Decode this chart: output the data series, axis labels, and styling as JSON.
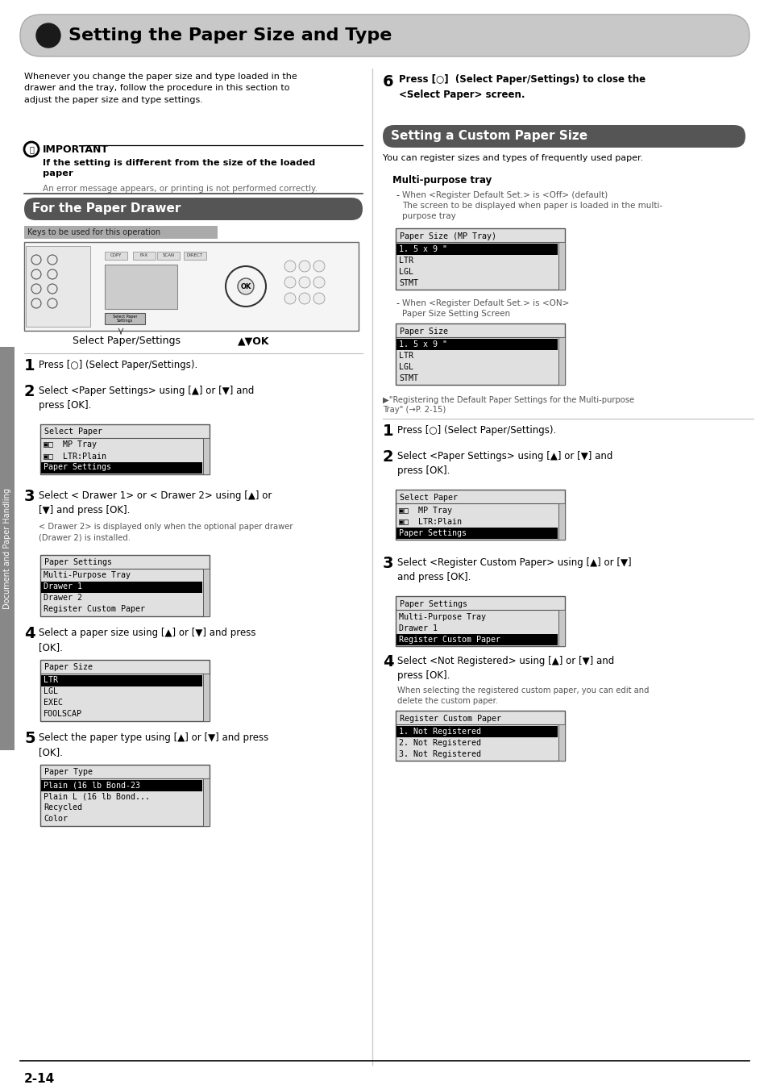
{
  "title": "Setting the Paper Size and Type",
  "page_number": "2-14",
  "sidebar_text": "Document and Paper Handling",
  "bg_color": "#ffffff",
  "intro_text": "Whenever you change the paper size and type loaded in the\ndrawer and the tray, follow the procedure in this section to\nadjust the paper size and type settings.",
  "important_title": "IMPORTANT",
  "important_bold": "If the setting is different from the size of the loaded\npaper",
  "important_body": "An error message appears, or printing is not performed correctly.",
  "section_left_title": "For the Paper Drawer",
  "keys_label": "Keys to be used for this operation",
  "caption_left": "Select Paper/Settings",
  "caption_right": "▲▼OK",
  "step1_left": "Press [○] (Select Paper/Settings).",
  "step2_left": "Select <Paper Settings> using [▲] or [▼] and\npress [OK].",
  "screen1_title": "Select Paper",
  "screen1_lines": [
    "▣□  MP Tray",
    "▣□  LTR:Plain",
    "Paper Settings"
  ],
  "screen1_highlight": 2,
  "step3_left": "Select < Drawer 1> or < Drawer 2> using [▲] or\n[▼] and press [OK].",
  "step3_note": "< Drawer 2> is displayed only when the optional paper drawer\n(Drawer 2) is installed.",
  "screen2_title": "Paper Settings",
  "screen2_lines": [
    "Multi-Purpose Tray",
    "Drawer 1",
    "Drawer 2",
    "Register Custom Paper"
  ],
  "screen2_highlight": 1,
  "step4_left": "Select a paper size using [▲] or [▼] and press\n[OK].",
  "screen3_title": "Paper Size",
  "screen3_lines": [
    "LTR",
    "LGL",
    "EXEC",
    "FOOLSCAP"
  ],
  "screen3_highlight": 0,
  "step5_left": "Select the paper type using [▲] or [▼] and press\n[OK].",
  "screen4_title": "Paper Type",
  "screen4_lines": [
    "Plain (16 lb Bond-23",
    "Plain L (16 lb Bond...",
    "Recycled",
    "Color"
  ],
  "screen4_highlight": 0,
  "step6_right": "Press [○]  (Select Paper/Settings) to close the\n<Select Paper> screen.",
  "section_right_title": "Setting a Custom Paper Size",
  "custom_intro": "You can register sizes and types of frequently used paper.",
  "multi_purpose_title": "Multi-purpose tray",
  "bullet1_line1": "When <Register Default Set.> is <Off> (default)",
  "bullet1_line2": "The screen to be displayed when paper is loaded in the multi-\npurpose tray",
  "screen5_title": "Paper Size (MP Tray)",
  "screen5_lines": [
    "1. 5 x 9 \"",
    "LTR",
    "LGL",
    "STMT"
  ],
  "screen5_highlight": 0,
  "bullet2_line1": "When <Register Default Set.> is <ON>",
  "bullet2_line2": "Paper Size Setting Screen",
  "screen6_title": "Paper Size",
  "screen6_lines": [
    "1. 5 x 9 \"",
    "LTR",
    "LGL",
    "STMT"
  ],
  "screen6_highlight": 0,
  "note_ref_line1": "▶\"Registering the Default Paper Settings for the Multi-purpose",
  "note_ref_line2": "Tray\" (→P. 2-15)",
  "step1_right": "Press [○] (Select Paper/Settings).",
  "step2_right": "Select <Paper Settings> using [▲] or [▼] and\npress [OK].",
  "screen7_title": "Select Paper",
  "screen7_lines": [
    "▣□  MP Tray",
    "▣□  LTR:Plain",
    "Paper Settings"
  ],
  "screen7_highlight": 2,
  "step3_right": "Select <Register Custom Paper> using [▲] or [▼]\nand press [OK].",
  "screen8_title": "Paper Settings",
  "screen8_lines": [
    "Multi-Purpose Tray",
    "Drawer 1",
    "Register Custom Paper"
  ],
  "screen8_highlight": 2,
  "step4_right": "Select <Not Registered> using [▲] or [▼] and\npress [OK].",
  "step4_right_note": "When selecting the registered custom paper, you can edit and\ndelete the custom paper.",
  "screen9_title": "Register Custom Paper",
  "screen9_lines": [
    "1. Not Registered",
    "2. Not Registered",
    "3. Not Registered"
  ],
  "screen9_highlight": 0
}
